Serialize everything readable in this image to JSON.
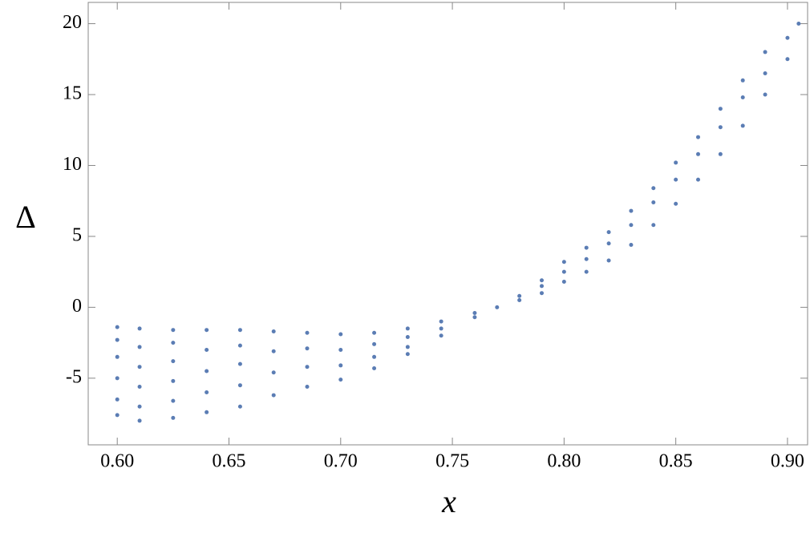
{
  "chart_data": {
    "type": "scatter",
    "x_label": "x",
    "y_label": "Δ",
    "color": "#5b7db4",
    "xlim": [
      0.587,
      0.909
    ],
    "ylim": [
      -9.7,
      21.5
    ],
    "xticks": [
      {
        "value": 0.6,
        "label": "0.60"
      },
      {
        "value": 0.65,
        "label": "0.65"
      },
      {
        "value": 0.7,
        "label": "0.70"
      },
      {
        "value": 0.75,
        "label": "0.75"
      },
      {
        "value": 0.8,
        "label": "0.80"
      },
      {
        "value": 0.85,
        "label": "0.85"
      },
      {
        "value": 0.9,
        "label": "0.90"
      }
    ],
    "yticks": [
      -5,
      0,
      5,
      10,
      15,
      20
    ],
    "x": [
      0.6,
      0.6,
      0.6,
      0.6,
      0.6,
      0.6,
      0.61,
      0.61,
      0.61,
      0.61,
      0.61,
      0.61,
      0.625,
      0.625,
      0.625,
      0.625,
      0.625,
      0.625,
      0.64,
      0.64,
      0.64,
      0.64,
      0.64,
      0.655,
      0.655,
      0.655,
      0.655,
      0.655,
      0.67,
      0.67,
      0.67,
      0.67,
      0.685,
      0.685,
      0.685,
      0.685,
      0.7,
      0.7,
      0.7,
      0.7,
      0.715,
      0.715,
      0.715,
      0.715,
      0.73,
      0.73,
      0.73,
      0.73,
      0.745,
      0.745,
      0.745,
      0.76,
      0.76,
      0.77,
      0.78,
      0.78,
      0.79,
      0.79,
      0.79,
      0.8,
      0.8,
      0.8,
      0.81,
      0.81,
      0.81,
      0.82,
      0.82,
      0.82,
      0.83,
      0.83,
      0.83,
      0.84,
      0.84,
      0.84,
      0.85,
      0.85,
      0.85,
      0.86,
      0.86,
      0.86,
      0.87,
      0.87,
      0.87,
      0.88,
      0.88,
      0.88,
      0.89,
      0.89,
      0.89,
      0.9,
      0.9,
      0.905
    ],
    "values": [
      -1.4,
      -2.3,
      -3.5,
      -5.0,
      -6.5,
      -7.6,
      -1.5,
      -2.8,
      -4.2,
      -5.6,
      -7.0,
      -8.0,
      -1.6,
      -2.5,
      -3.8,
      -5.2,
      -6.6,
      -7.8,
      -1.6,
      -3.0,
      -4.5,
      -6.0,
      -7.4,
      -1.6,
      -2.7,
      -4.0,
      -5.5,
      -7.0,
      -1.7,
      -3.1,
      -4.6,
      -6.2,
      -1.8,
      -2.9,
      -4.2,
      -5.6,
      -1.9,
      -3.0,
      -4.1,
      -5.1,
      -1.8,
      -2.6,
      -3.5,
      -4.3,
      -1.5,
      -2.1,
      -2.8,
      -3.3,
      -1.0,
      -1.5,
      -2.0,
      -0.4,
      -0.7,
      0.0,
      0.5,
      0.8,
      1.0,
      1.5,
      1.9,
      1.8,
      2.5,
      3.2,
      2.5,
      3.4,
      4.2,
      3.3,
      4.5,
      5.3,
      4.4,
      5.8,
      6.8,
      5.8,
      7.4,
      8.4,
      7.3,
      9.0,
      10.2,
      9.0,
      10.8,
      12.0,
      10.8,
      12.7,
      14.0,
      12.8,
      14.8,
      16.0,
      15.0,
      16.5,
      18.0,
      17.5,
      19.0,
      20.0
    ]
  }
}
